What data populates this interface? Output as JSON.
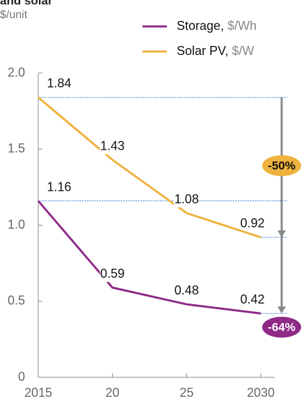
{
  "chart_data": {
    "type": "line",
    "title": "and solar",
    "subtitle": "$/unit",
    "x": [
      2015,
      2020,
      2025,
      2030
    ],
    "xlim": [
      2015,
      2030
    ],
    "xticks": [
      2015,
      {
        "value": 2020,
        "label": "20"
      },
      {
        "value": 2025,
        "label": "25"
      },
      2030
    ],
    "ylim": [
      0,
      2
    ],
    "yticks": [
      0,
      0.5,
      {
        "value": 1,
        "label": "1.0"
      },
      1.5,
      {
        "value": 2,
        "label": "2.0"
      }
    ],
    "series": [
      {
        "name": "Storage,",
        "unit": "$/Wh",
        "color": "#8e2a86",
        "values": [
          1.16,
          0.59,
          0.48,
          0.42
        ]
      },
      {
        "name": "Solar PV,",
        "unit": "$/W",
        "color": "#efb23d",
        "values": [
          1.84,
          1.43,
          1.08,
          0.92
        ]
      }
    ],
    "annotations": [
      {
        "text": "-50%",
        "color": "#efb23d"
      },
      {
        "text": "-64%",
        "color": "#8e2a86"
      }
    ]
  }
}
